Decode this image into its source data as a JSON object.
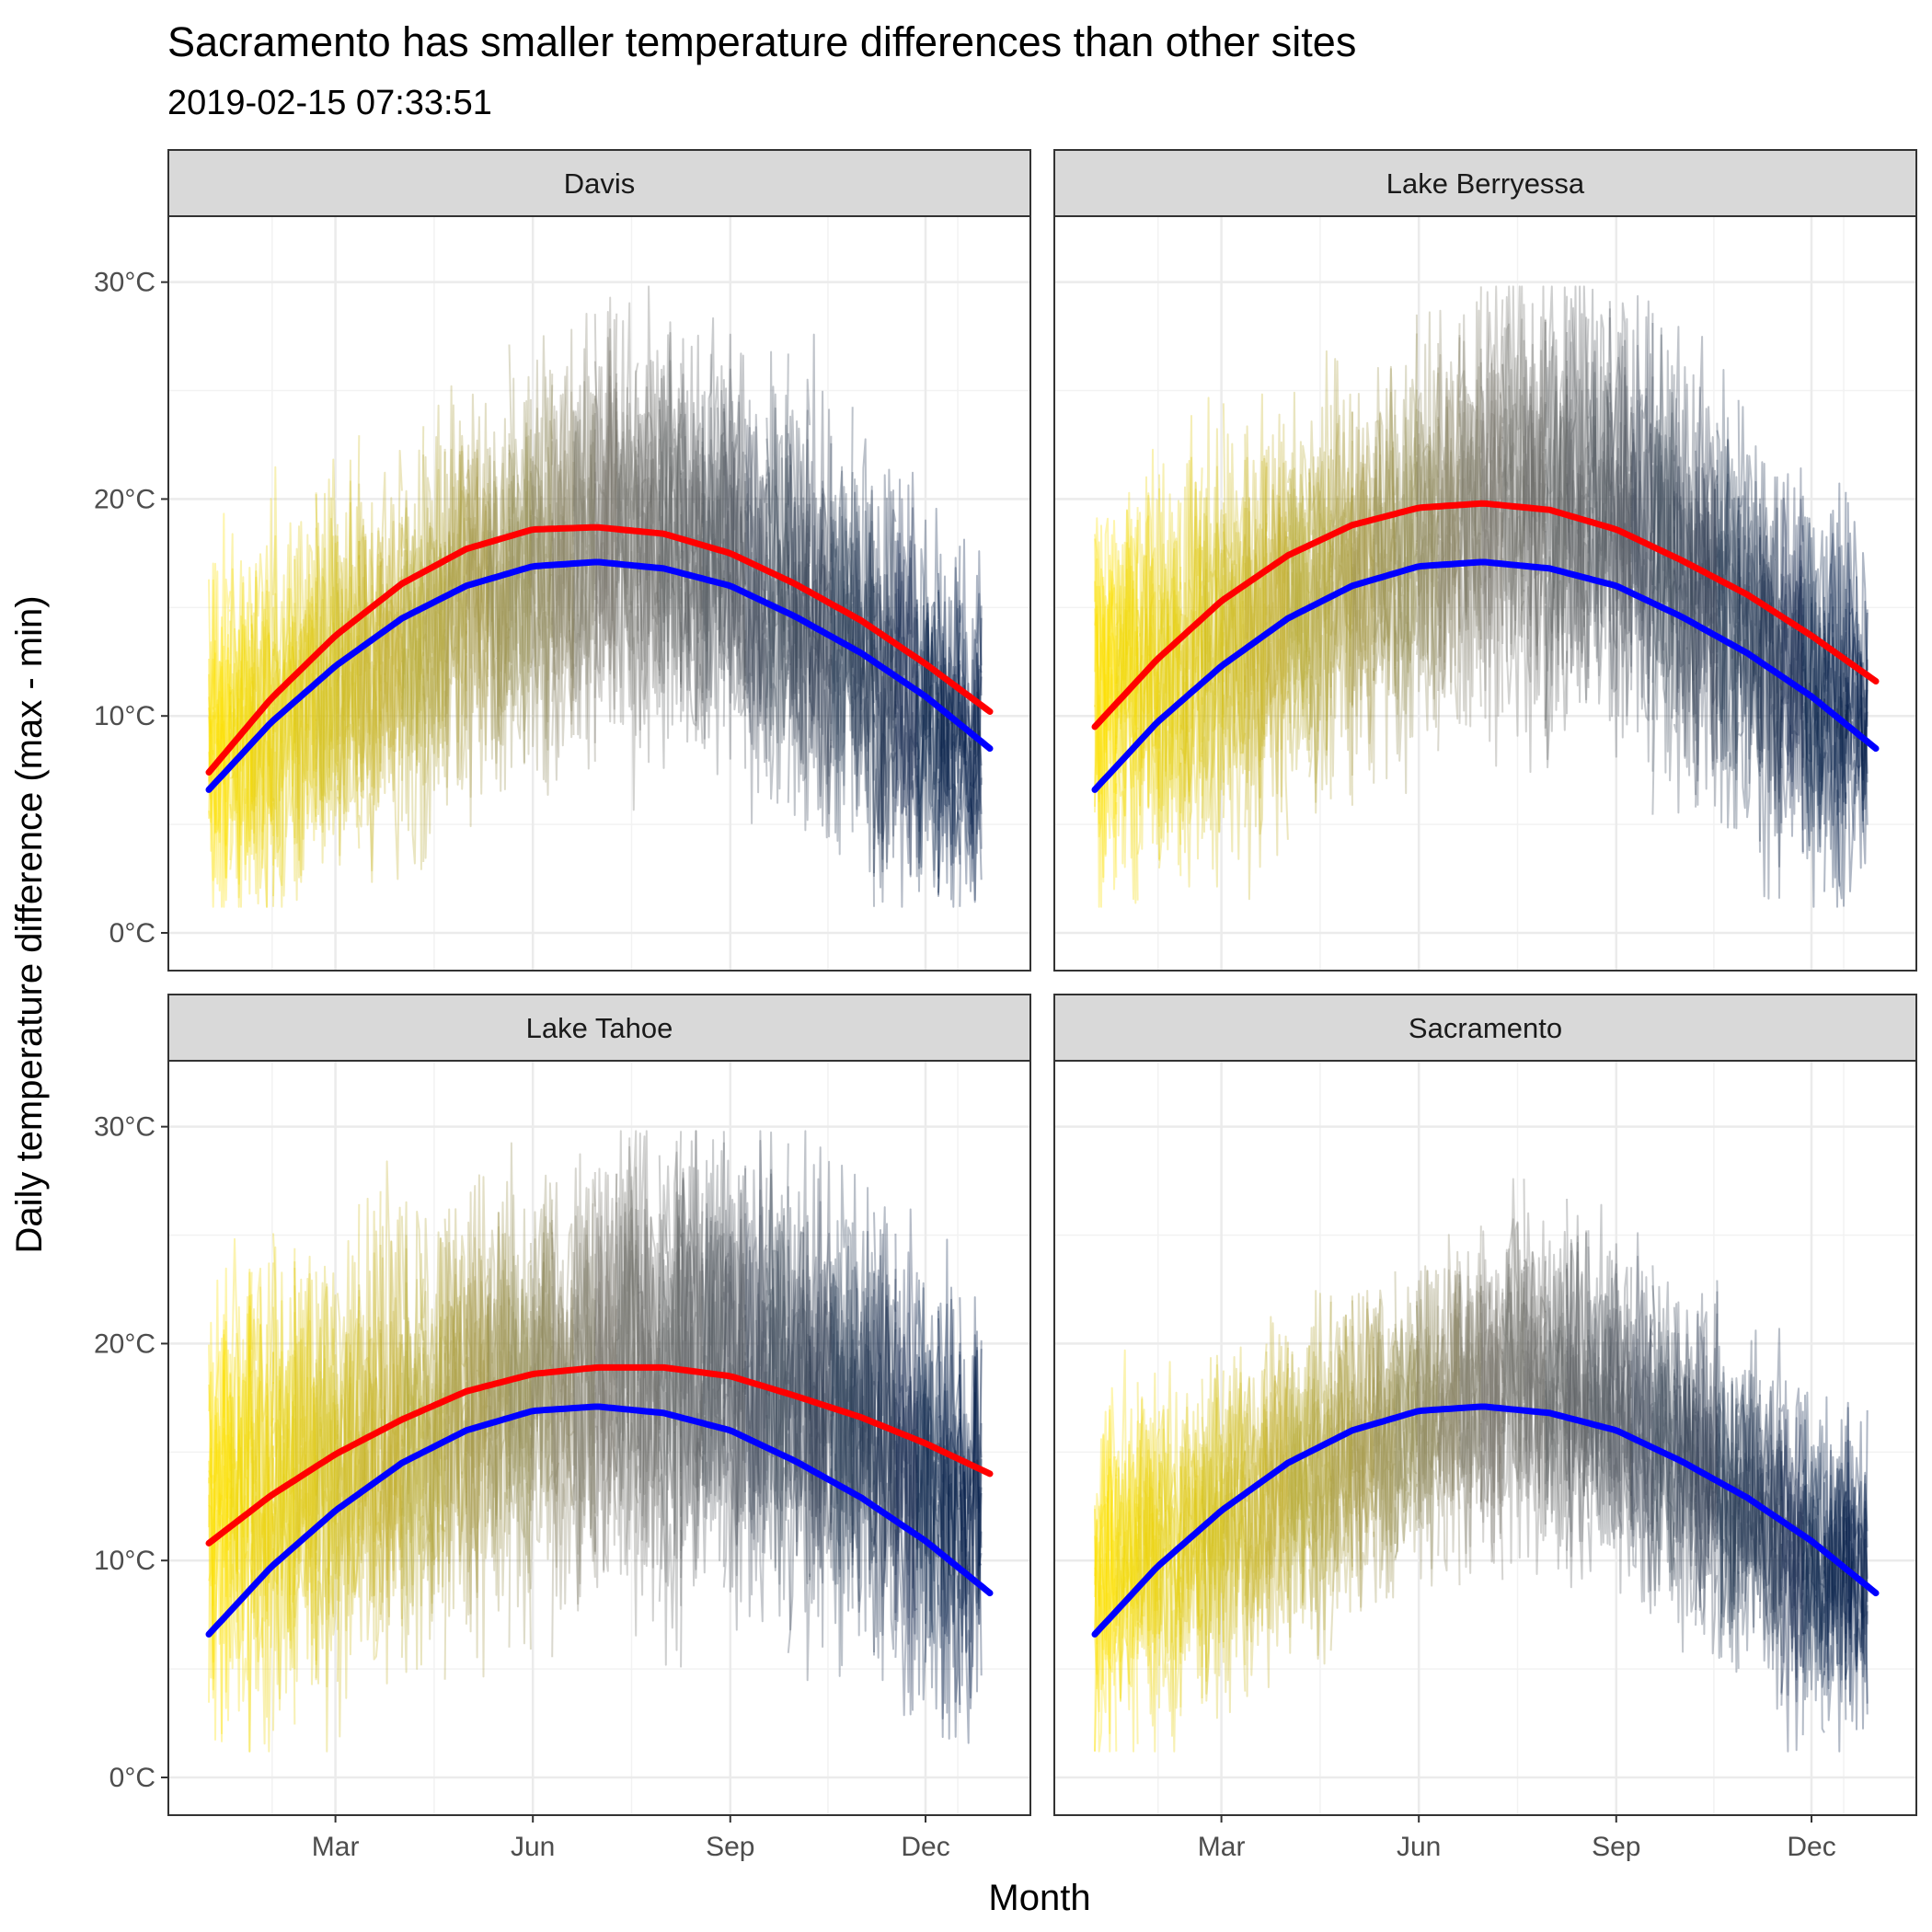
{
  "title": "Sacramento has smaller temperature differences than other sites",
  "subtitle": "2019-02-15 07:33:51",
  "chart_data": {
    "type": "line",
    "layout": "facet grid 2x2",
    "xlabel": "Month",
    "ylabel": "Daily temperature difference (max - min)",
    "x_unit": "day of year",
    "x_ticks": [
      {
        "label": "Mar",
        "day": 60
      },
      {
        "label": "Jun",
        "day": 152
      },
      {
        "label": "Sep",
        "day": 244
      },
      {
        "label": "Dec",
        "day": 335
      }
    ],
    "xlim": [
      1,
      365
    ],
    "ylim": [
      0,
      30
    ],
    "y_ticks": [
      {
        "label": "0°C",
        "value": 0
      },
      {
        "label": "10°C",
        "value": 10
      },
      {
        "label": "20°C",
        "value": 20
      },
      {
        "label": "30°C",
        "value": 30
      }
    ],
    "grid": true,
    "legend": "none",
    "colors": {
      "raw_start": "#FFE300",
      "raw_mid": "#7F7C72",
      "raw_end": "#001B4A",
      "site_fit": "#FF0000",
      "sacramento_fit": "#0000FF",
      "strip_bg": "#D9D9D9",
      "gridline": "#EBEBEB"
    },
    "panels": [
      {
        "name": "Davis",
        "raw_profile": {
          "day": [
            1,
            60,
            152,
            200,
            244,
            290,
            335,
            365
          ],
          "typical": [
            9,
            11.5,
            17,
            18.5,
            17,
            14,
            10,
            8
          ],
          "spread": [
            9,
            9,
            9,
            10,
            10,
            10,
            9,
            8
          ]
        },
        "site_fit": {
          "day": [
            1,
            30,
            60,
            91,
            121,
            152,
            182,
            213,
            244,
            274,
            305,
            335,
            365
          ],
          "values": [
            7.4,
            10.8,
            13.7,
            16.1,
            17.7,
            18.6,
            18.7,
            18.4,
            17.5,
            16.1,
            14.4,
            12.4,
            10.2
          ]
        },
        "sacramento_fit": {
          "day": [
            1,
            30,
            60,
            91,
            121,
            152,
            182,
            213,
            244,
            274,
            305,
            335,
            365
          ],
          "values": [
            6.6,
            9.7,
            12.3,
            14.5,
            16.0,
            16.9,
            17.1,
            16.8,
            16.0,
            14.6,
            12.9,
            10.9,
            8.5
          ]
        }
      },
      {
        "name": "Lake Berryessa",
        "raw_profile": {
          "day": [
            1,
            60,
            152,
            200,
            244,
            290,
            335,
            365
          ],
          "typical": [
            11,
            13,
            18,
            20,
            19,
            15.5,
            11,
            10
          ],
          "spread": [
            9,
            10,
            9,
            10,
            10,
            10,
            9,
            8
          ]
        },
        "site_fit": {
          "day": [
            1,
            30,
            60,
            91,
            121,
            152,
            182,
            213,
            244,
            274,
            305,
            335,
            365
          ],
          "values": [
            9.5,
            12.6,
            15.3,
            17.4,
            18.8,
            19.6,
            19.8,
            19.5,
            18.6,
            17.2,
            15.6,
            13.7,
            11.6
          ]
        },
        "sacramento_fit": {
          "day": [
            1,
            30,
            60,
            91,
            121,
            152,
            182,
            213,
            244,
            274,
            305,
            335,
            365
          ],
          "values": [
            6.6,
            9.7,
            12.3,
            14.5,
            16.0,
            16.9,
            17.1,
            16.8,
            16.0,
            14.6,
            12.9,
            10.9,
            8.5
          ]
        }
      },
      {
        "name": "Lake Tahoe",
        "raw_profile": {
          "day": [
            1,
            60,
            152,
            200,
            244,
            290,
            335,
            365
          ],
          "typical": [
            13,
            14,
            18,
            19,
            19,
            16.5,
            14,
            12
          ],
          "spread": [
            11,
            11,
            10,
            11,
            11,
            11,
            11,
            10
          ]
        },
        "site_fit": {
          "day": [
            1,
            30,
            60,
            91,
            121,
            152,
            182,
            213,
            244,
            274,
            305,
            335,
            365
          ],
          "values": [
            10.8,
            13.0,
            14.9,
            16.5,
            17.8,
            18.6,
            18.9,
            18.9,
            18.5,
            17.6,
            16.6,
            15.4,
            14.0
          ]
        },
        "sacramento_fit": {
          "day": [
            1,
            30,
            60,
            91,
            121,
            152,
            182,
            213,
            244,
            274,
            305,
            335,
            365
          ],
          "values": [
            6.6,
            9.7,
            12.3,
            14.5,
            16.0,
            16.9,
            17.1,
            16.8,
            16.0,
            14.6,
            12.9,
            10.9,
            8.5
          ]
        }
      },
      {
        "name": "Sacramento",
        "raw_profile": {
          "day": [
            1,
            60,
            152,
            200,
            244,
            290,
            335,
            365
          ],
          "typical": [
            9,
            11.5,
            16.5,
            18.5,
            17,
            13.5,
            10,
            8.5
          ],
          "spread": [
            8,
            8,
            7,
            8,
            8,
            8,
            8,
            7
          ]
        },
        "sacramento_fit": {
          "day": [
            1,
            30,
            60,
            91,
            121,
            152,
            182,
            213,
            244,
            274,
            305,
            335,
            365
          ],
          "values": [
            6.6,
            9.7,
            12.3,
            14.5,
            16.0,
            16.9,
            17.1,
            16.8,
            16.0,
            14.6,
            12.9,
            10.9,
            8.5
          ]
        }
      }
    ]
  }
}
